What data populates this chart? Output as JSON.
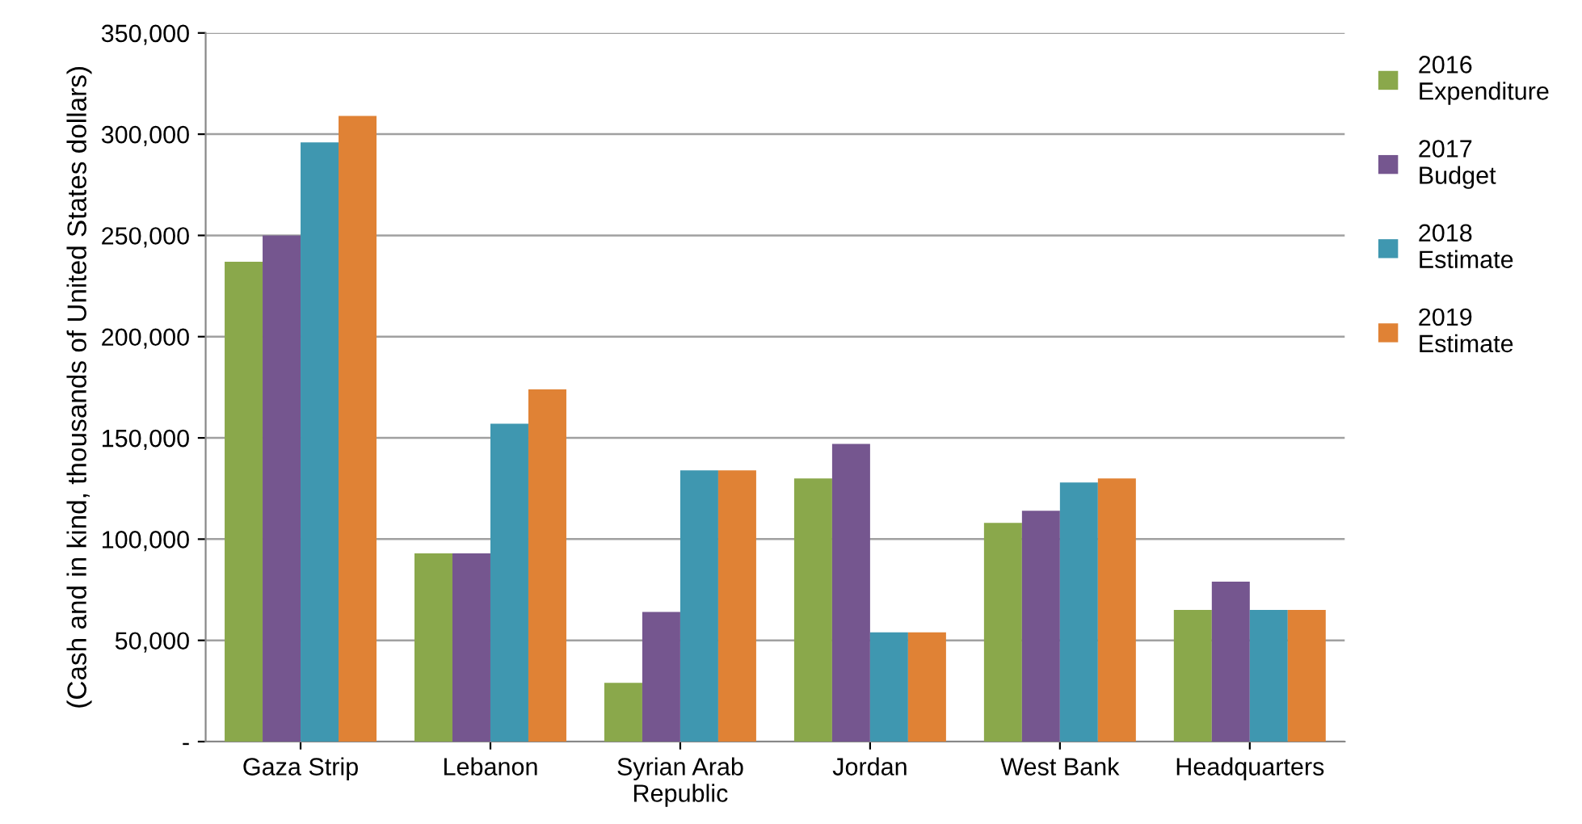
{
  "chart_data": {
    "type": "bar",
    "ylabel": "(Cash and in kind, thousands of United States dollars)",
    "categories": [
      "Gaza Strip",
      "Lebanon",
      "Syrian Arab\nRepublic",
      "Jordan",
      "West Bank",
      "Headquarters"
    ],
    "series": [
      {
        "name": "2016\nExpenditure",
        "color": "#8aa84b",
        "values": [
          237000,
          93000,
          29000,
          130000,
          108000,
          65000
        ]
      },
      {
        "name": "2017\nBudget",
        "color": "#75568f",
        "values": [
          250000,
          93000,
          64000,
          147000,
          114000,
          79000
        ]
      },
      {
        "name": "2018\nEstimate",
        "color": "#3f97b0",
        "values": [
          296000,
          157000,
          134000,
          54000,
          128000,
          65000
        ]
      },
      {
        "name": "2019\nEstimate",
        "color": "#e08235",
        "values": [
          309000,
          174000,
          134000,
          54000,
          130000,
          65000
        ]
      }
    ],
    "ylim": [
      0,
      350000
    ],
    "yticks": [
      {
        "value": 0,
        "label": "-"
      },
      {
        "value": 50000,
        "label": "50,000"
      },
      {
        "value": 100000,
        "label": "100,000"
      },
      {
        "value": 150000,
        "label": "150,000"
      },
      {
        "value": 200000,
        "label": "200,000"
      },
      {
        "value": 250000,
        "label": "250,000"
      },
      {
        "value": 300000,
        "label": "300,000"
      },
      {
        "value": 350000,
        "label": "350,000"
      }
    ],
    "grid": "y",
    "legend": "right"
  }
}
